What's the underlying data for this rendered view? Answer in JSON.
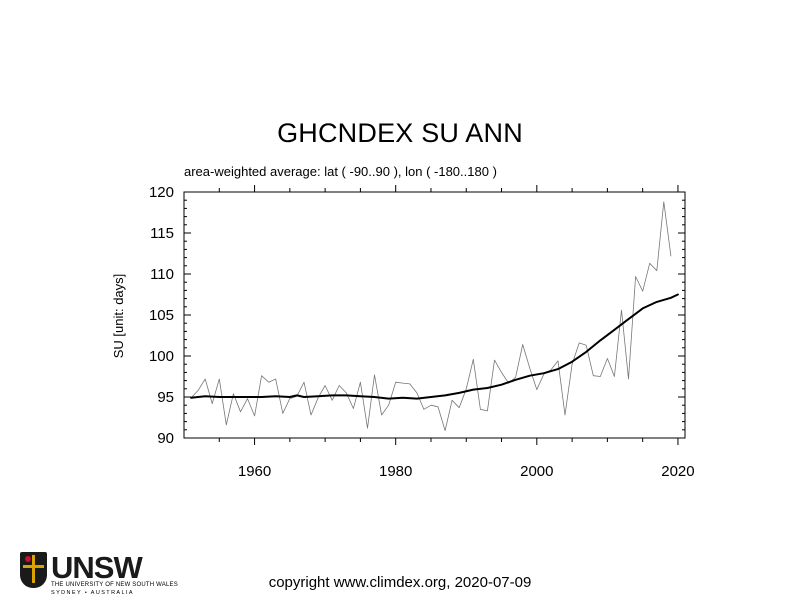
{
  "title": "GHCNDEX SU ANN",
  "subtitle": "area-weighted average: lat ( -90..90 ), lon ( -180..180 )",
  "footer": "copyright www.climdex.org, 2020-07-09",
  "logo": {
    "wordmark": "UNSW",
    "tagline": "THE UNIVERSITY OF NEW SOUTH WALES",
    "location": "SYDNEY • AUSTRALIA"
  },
  "chart_data": {
    "type": "line",
    "title": "GHCNDEX SU ANN",
    "ylabel": "SU [unit: days]",
    "xlabel": "",
    "xlim": [
      1950,
      2021
    ],
    "ylim": [
      90,
      120
    ],
    "x_ticks": [
      1960,
      1980,
      2000,
      2020
    ],
    "y_ticks": [
      90,
      95,
      100,
      105,
      110,
      115,
      120
    ],
    "grid": false,
    "series": [
      {
        "style": "thin-gray",
        "color": "#777777",
        "x": [
          1951,
          1952,
          1953,
          1954,
          1955,
          1956,
          1957,
          1958,
          1959,
          1960,
          1961,
          1962,
          1963,
          1964,
          1965,
          1966,
          1967,
          1968,
          1969,
          1970,
          1971,
          1972,
          1973,
          1974,
          1975,
          1976,
          1977,
          1978,
          1979,
          1980,
          1981,
          1982,
          1983,
          1984,
          1985,
          1986,
          1987,
          1988,
          1989,
          1990,
          1991,
          1992,
          1993,
          1994,
          1995,
          1996,
          1997,
          1998,
          1999,
          2000,
          2001,
          2002,
          2003,
          2004,
          2005,
          2006,
          2007,
          2008,
          2009,
          2010,
          2011,
          2012,
          2013,
          2014,
          2015,
          2016,
          2017,
          2018,
          2019
        ],
        "values": [
          94.9,
          95.8,
          97.2,
          94.2,
          97.2,
          91.6,
          95.4,
          93.2,
          94.8,
          92.7,
          97.6,
          96.8,
          97.2,
          93.0,
          94.8,
          95.1,
          96.8,
          92.8,
          94.9,
          96.4,
          94.6,
          96.4,
          95.5,
          93.6,
          96.8,
          91.2,
          97.7,
          92.8,
          94.0,
          96.8,
          96.7,
          96.6,
          95.5,
          93.5,
          94.0,
          93.8,
          90.9,
          94.6,
          93.7,
          96.0,
          99.6,
          93.5,
          93.3,
          99.5,
          98.0,
          96.7,
          97.4,
          101.4,
          98.5,
          95.9,
          97.8,
          98.3,
          99.4,
          92.8,
          99.0,
          101.6,
          101.3,
          97.6,
          97.5,
          99.7,
          97.5,
          105.6,
          97.2,
          109.7,
          107.9,
          111.3,
          110.4,
          118.8,
          112.2
        ]
      },
      {
        "style": "thick-black-smoothed",
        "color": "#000000",
        "x": [
          1951,
          1953,
          1955,
          1957,
          1959,
          1961,
          1963,
          1965,
          1966,
          1967,
          1969,
          1971,
          1973,
          1975,
          1977,
          1979,
          1981,
          1983,
          1985,
          1987,
          1989,
          1991,
          1993,
          1995,
          1997,
          1999,
          2001,
          2003,
          2005,
          2007,
          2009,
          2011,
          2013,
          2015,
          2017,
          2019,
          2020
        ],
        "values": [
          94.9,
          95.1,
          95.0,
          95.0,
          95.0,
          95.0,
          95.1,
          95.0,
          95.2,
          95.0,
          95.1,
          95.2,
          95.2,
          95.1,
          95.0,
          94.8,
          94.9,
          94.8,
          95.0,
          95.2,
          95.5,
          95.9,
          96.1,
          96.5,
          97.1,
          97.6,
          97.9,
          98.4,
          99.3,
          100.5,
          101.9,
          103.2,
          104.5,
          105.8,
          106.6,
          107.1,
          107.5
        ]
      }
    ]
  }
}
